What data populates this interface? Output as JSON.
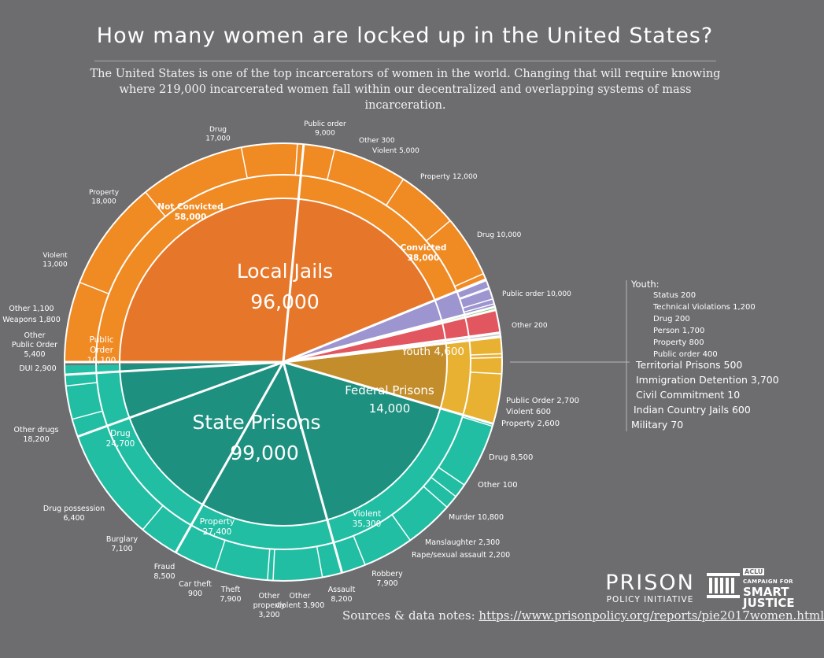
{
  "header": {
    "title": "How many women are locked up in the United States?",
    "subtitle_line1": "The United States is one of the top incarcerators of women in the world.  Changing that will require knowing",
    "subtitle_line2": "where 219,000 incarcerated women fall within our decentralized and overlapping systems of mass incarceration."
  },
  "footer": {
    "sources_label": "Sources & data notes:",
    "sources_url": "https://www.prisonpolicy.org/reports/pie2017women.html",
    "ppi_big": "PRISON",
    "ppi_small": "POLICY INITIATIVE",
    "aclu_tag": "ACLU",
    "aclu_campaign": "CAMPAIGN FOR",
    "aclu_smart": "SMART",
    "aclu_justice": "JUSTICE"
  },
  "chart_data": {
    "type": "pie",
    "title": "How many women are locked up in the United States?",
    "total": 219000,
    "colors": {
      "background": "#6d6d6f",
      "jails": "#f08a23",
      "jails_inner": "#e6772a",
      "prisons": "#22bea3",
      "prisons_inner": "#1d907f",
      "federal": "#e8b131",
      "federal_inner": "#c38d2c",
      "youth": "#9c95cf",
      "territorial": "#7ec56a",
      "immigration": "#e2565f",
      "civil": "#d6d6d6",
      "indian": "#c9c9c9",
      "military": "#bdbdbd"
    },
    "systems": [
      {
        "name": "Local Jails",
        "value": 96000,
        "value_label": "96,000",
        "color_key": "jails",
        "groups": [
          {
            "name": "Not Convicted",
            "value": 58000,
            "value_label": "58,000",
            "offenses": [
              {
                "name": "Violent",
                "value": 13000,
                "value_label": "13,000"
              },
              {
                "name": "Property",
                "value": 18000,
                "value_label": "18,000"
              },
              {
                "name": "Drug",
                "value": 17000,
                "value_label": "17,000"
              },
              {
                "name": "Public order",
                "value": 9000,
                "value_label": "9,000"
              },
              {
                "name": "Other",
                "value": 300,
                "value_label": "300"
              }
            ]
          },
          {
            "name": "Convicted",
            "value": 38000,
            "value_label": "38,000",
            "offenses": [
              {
                "name": "Violent",
                "value": 5000,
                "value_label": "5,000"
              },
              {
                "name": "Property",
                "value": 12000,
                "value_label": "12,000"
              },
              {
                "name": "Drug",
                "value": 10000,
                "value_label": "10,000"
              },
              {
                "name": "Public order",
                "value": 10000,
                "value_label": "10,000"
              },
              {
                "name": "Other",
                "value": 200,
                "value_label": "200"
              }
            ]
          }
        ]
      },
      {
        "name": "Youth",
        "value": 4600,
        "value_label": "4,600",
        "color_key": "youth",
        "offenses": [
          {
            "name": "Status",
            "value": 200,
            "value_label": "200"
          },
          {
            "name": "Technical Violations",
            "value": 1200,
            "value_label": "1,200"
          },
          {
            "name": "Drug",
            "value": 200,
            "value_label": "200"
          },
          {
            "name": "Person",
            "value": 1700,
            "value_label": "1,700"
          },
          {
            "name": "Property",
            "value": 800,
            "value_label": "800"
          },
          {
            "name": "Public order",
            "value": 400,
            "value_label": "400"
          }
        ]
      },
      {
        "name": "Territorial Prisons",
        "value": 500,
        "value_label": "500",
        "color_key": "territorial"
      },
      {
        "name": "Immigration Detention",
        "value": 3700,
        "value_label": "3,700",
        "color_key": "immigration"
      },
      {
        "name": "Civil Commitment",
        "value": 10,
        "value_label": "10",
        "color_key": "civil"
      },
      {
        "name": "Indian Country Jails",
        "value": 600,
        "value_label": "600",
        "color_key": "indian"
      },
      {
        "name": "Military",
        "value": 70,
        "value_label": "70",
        "color_key": "military"
      },
      {
        "name": "Federal Prisons",
        "value": 14000,
        "value_label": "14,000",
        "color_key": "federal",
        "offenses": [
          {
            "name": "Public Order",
            "value": 2700,
            "value_label": "2,700"
          },
          {
            "name": "Violent",
            "value": 600,
            "value_label": "600"
          },
          {
            "name": "Property",
            "value": 2600,
            "value_label": "2,600"
          },
          {
            "name": "Drug",
            "value": 8500,
            "value_label": "8,500"
          },
          {
            "name": "Other",
            "value": 100,
            "value_label": "100"
          }
        ]
      },
      {
        "name": "State Prisons",
        "value": 99000,
        "value_label": "99,000",
        "color_key": "prisons",
        "groups": [
          {
            "name": "Violent",
            "value": 35300,
            "value_label": "35,300",
            "offenses": [
              {
                "name": "Murder",
                "value": 10800,
                "value_label": "10,800"
              },
              {
                "name": "Manslaughter",
                "value": 2300,
                "value_label": "2,300"
              },
              {
                "name": "Rape/sexual assault",
                "value": 2200,
                "value_label": "2,200"
              },
              {
                "name": "Robbery",
                "value": 7900,
                "value_label": "7,900"
              },
              {
                "name": "Assault",
                "value": 8200,
                "value_label": "8,200"
              },
              {
                "name": "Other violent",
                "value": 3900,
                "value_label": "3,900"
              }
            ]
          },
          {
            "name": "Property",
            "value": 27400,
            "value_label": "27,400",
            "offenses": [
              {
                "name": "Other property",
                "value": 3200,
                "value_label": "3,200"
              },
              {
                "name": "Theft",
                "value": 7900,
                "value_label": "7,900"
              },
              {
                "name": "Car theft",
                "value": 900,
                "value_label": "900"
              },
              {
                "name": "Fraud",
                "value": 8500,
                "value_label": "8,500"
              },
              {
                "name": "Burglary",
                "value": 7100,
                "value_label": "7,100"
              }
            ]
          },
          {
            "name": "Drug",
            "value": 24700,
            "value_label": "24,700",
            "offenses": [
              {
                "name": "Drug possession",
                "value": 6400,
                "value_label": "6,400"
              },
              {
                "name": "Other drugs",
                "value": 18200,
                "value_label": "18,200"
              }
            ]
          },
          {
            "name": "Public Order",
            "value": 10100,
            "value_label": "10,100",
            "offenses": [
              {
                "name": "DUI",
                "value": 2900,
                "value_label": "2,900"
              },
              {
                "name": "Other Public Order",
                "value": 5400,
                "value_label": "5,400"
              },
              {
                "name": "Weapons",
                "value": 1800,
                "value_label": "1,800"
              }
            ]
          },
          {
            "name": "Other",
            "value": 1100,
            "value_label": "1,100"
          }
        ]
      }
    ]
  }
}
